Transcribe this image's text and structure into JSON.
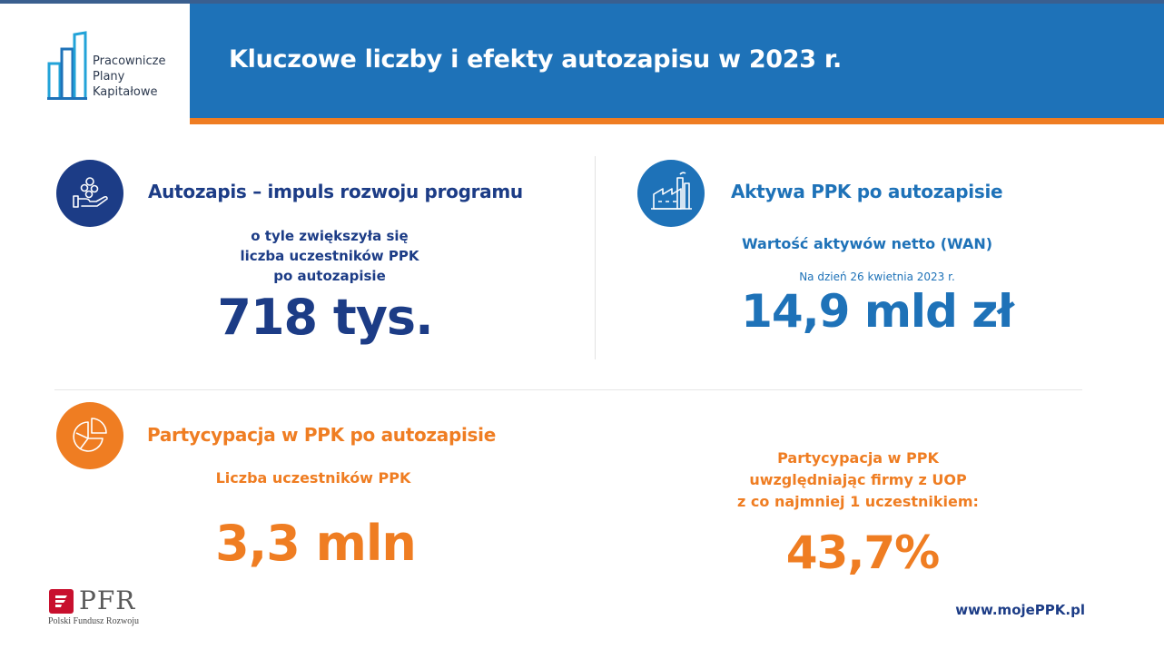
{
  "logo": {
    "line1": "Pracownicze",
    "line2": "Plany",
    "line3": "Kapitałowe",
    "icon": "building-bars-logo"
  },
  "header": {
    "title": "Kluczowe liczby i efekty autozapisu w 2023 r."
  },
  "section_autozapis": {
    "icon": "hand-coins-icon",
    "title": "Autozapis – impuls rozwoju programu",
    "desc_line1": "o tyle zwiększyła się",
    "desc_line2": "liczba uczestników PPK",
    "desc_line3": "po autozapisie",
    "value": "718 tys."
  },
  "section_aktywa": {
    "icon": "factory-icon",
    "title": "Aktywa PPK po autozapisie",
    "subtitle": "Wartość aktywów netto (WAN)",
    "date": "Na dzień 26 kwietnia 2023 r.",
    "value": "14,9 mld zł"
  },
  "section_partycypacja": {
    "icon": "pie-chart-icon",
    "title": "Partycypacja w PPK po autozapisie",
    "subtitle": "Liczba uczestników PPK",
    "value": "3,3 mln",
    "right_line1": "Partycypacja w PPK",
    "right_line2": "uwzględniając firmy z UOP",
    "right_line3": "z co najmniej 1 uczestnikiem:",
    "right_value": "43,7%"
  },
  "footer": {
    "pfr_name": "PFR",
    "pfr_full": "Polski Fundusz Rozwoju",
    "website": "www.mojePPK.pl"
  },
  "colors": {
    "navy": "#1c3c86",
    "blue": "#1e72b8",
    "orange": "#ef7d22",
    "pfr_red": "#c8102e"
  }
}
